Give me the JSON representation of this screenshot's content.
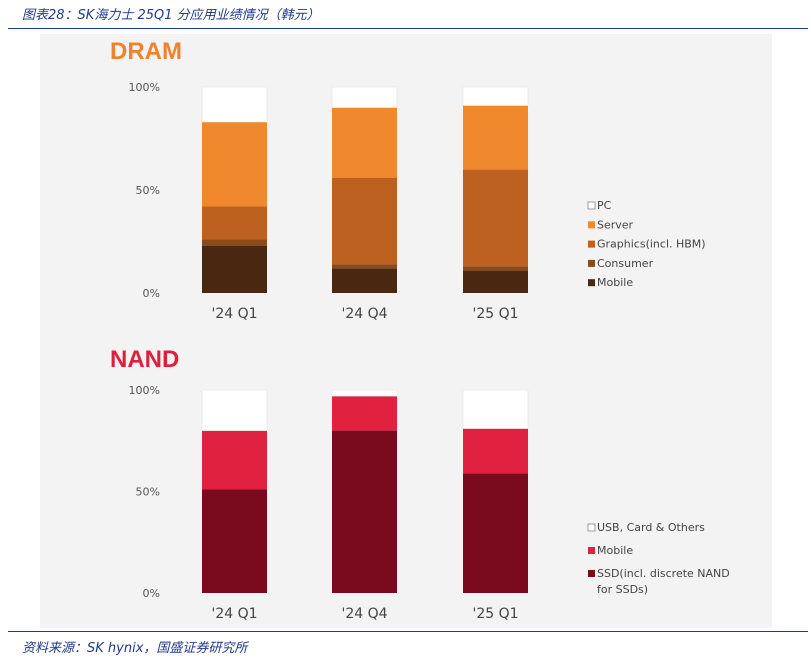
{
  "header": {
    "title": "图表28：SK海力士 25Q1 分应用业绩情况（韩元）"
  },
  "footer": {
    "source": "资料来源：SK hynix，国盛证券研究所"
  },
  "chart_data": [
    {
      "type": "bar",
      "stacked": true,
      "title": "DRAM",
      "title_color": "#f0822e",
      "categories": [
        "'24 Q1",
        "'24 Q4",
        "'25 Q1"
      ],
      "ylim": [
        0,
        100
      ],
      "yticks": [
        "0%",
        "50%",
        "100%"
      ],
      "legend_position": "right",
      "series": [
        {
          "name": "Mobile",
          "color": "#4a2710",
          "values": [
            23,
            12,
            11
          ]
        },
        {
          "name": "Consumer",
          "color": "#8a4b18",
          "values": [
            3,
            2,
            2
          ]
        },
        {
          "name": "Graphics(incl. HBM)",
          "color": "#bd6121",
          "values": [
            16,
            42,
            47
          ]
        },
        {
          "name": "Server",
          "color": "#f0882d",
          "values": [
            41,
            34,
            31
          ]
        },
        {
          "name": "PC",
          "color": "#ffffff",
          "values": [
            17,
            10,
            9
          ]
        }
      ],
      "legend": [
        "PC",
        "Server",
        "Graphics(incl. HBM)",
        "Consumer",
        "Mobile"
      ]
    },
    {
      "type": "bar",
      "stacked": true,
      "title": "NAND",
      "title_color": "#e01e3c",
      "categories": [
        "'24 Q1",
        "'24 Q4",
        "'25 Q1"
      ],
      "ylim": [
        0,
        100
      ],
      "yticks": [
        "0%",
        "50%",
        "100%"
      ],
      "legend_position": "right",
      "series": [
        {
          "name": "SSD(incl. discrete NAND for SSDs)",
          "color": "#7a0a1e",
          "values": [
            51,
            80,
            59
          ]
        },
        {
          "name": "Mobile",
          "color": "#e0213f",
          "values": [
            29,
            17,
            22
          ]
        },
        {
          "name": "USB, Card & Others",
          "color": "#ffffff",
          "values": [
            20,
            3,
            19
          ]
        }
      ],
      "legend": [
        "USB, Card & Others",
        "Mobile",
        "SSD(incl. discrete NAND for SSDs)"
      ]
    }
  ]
}
